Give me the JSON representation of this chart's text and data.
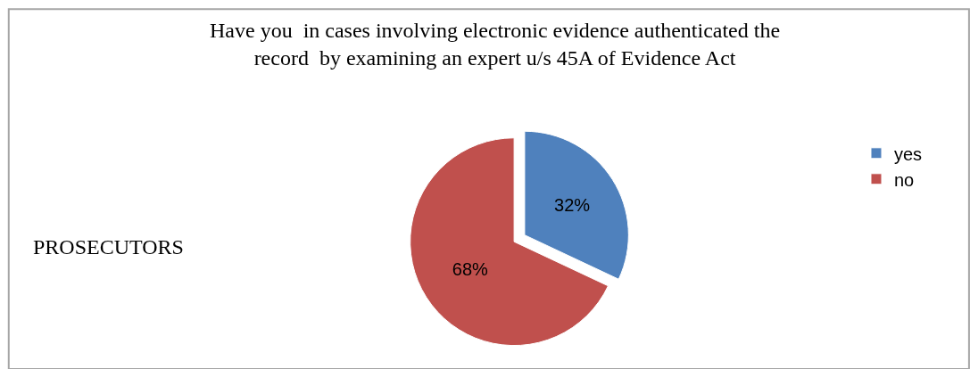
{
  "chart_data": {
    "type": "pie",
    "title": "Have you  in cases involving electronic evidence authenticated the\nrecord  by examining an expert u/s 45A of Evidence Act",
    "categories": [
      "yes",
      "no"
    ],
    "values": [
      32,
      68
    ],
    "colors": [
      "#4f81bd",
      "#c0504d"
    ],
    "value_labels": [
      "32%",
      "68%"
    ],
    "annotations": [
      "PROSECUTORS"
    ],
    "legend": "right"
  }
}
